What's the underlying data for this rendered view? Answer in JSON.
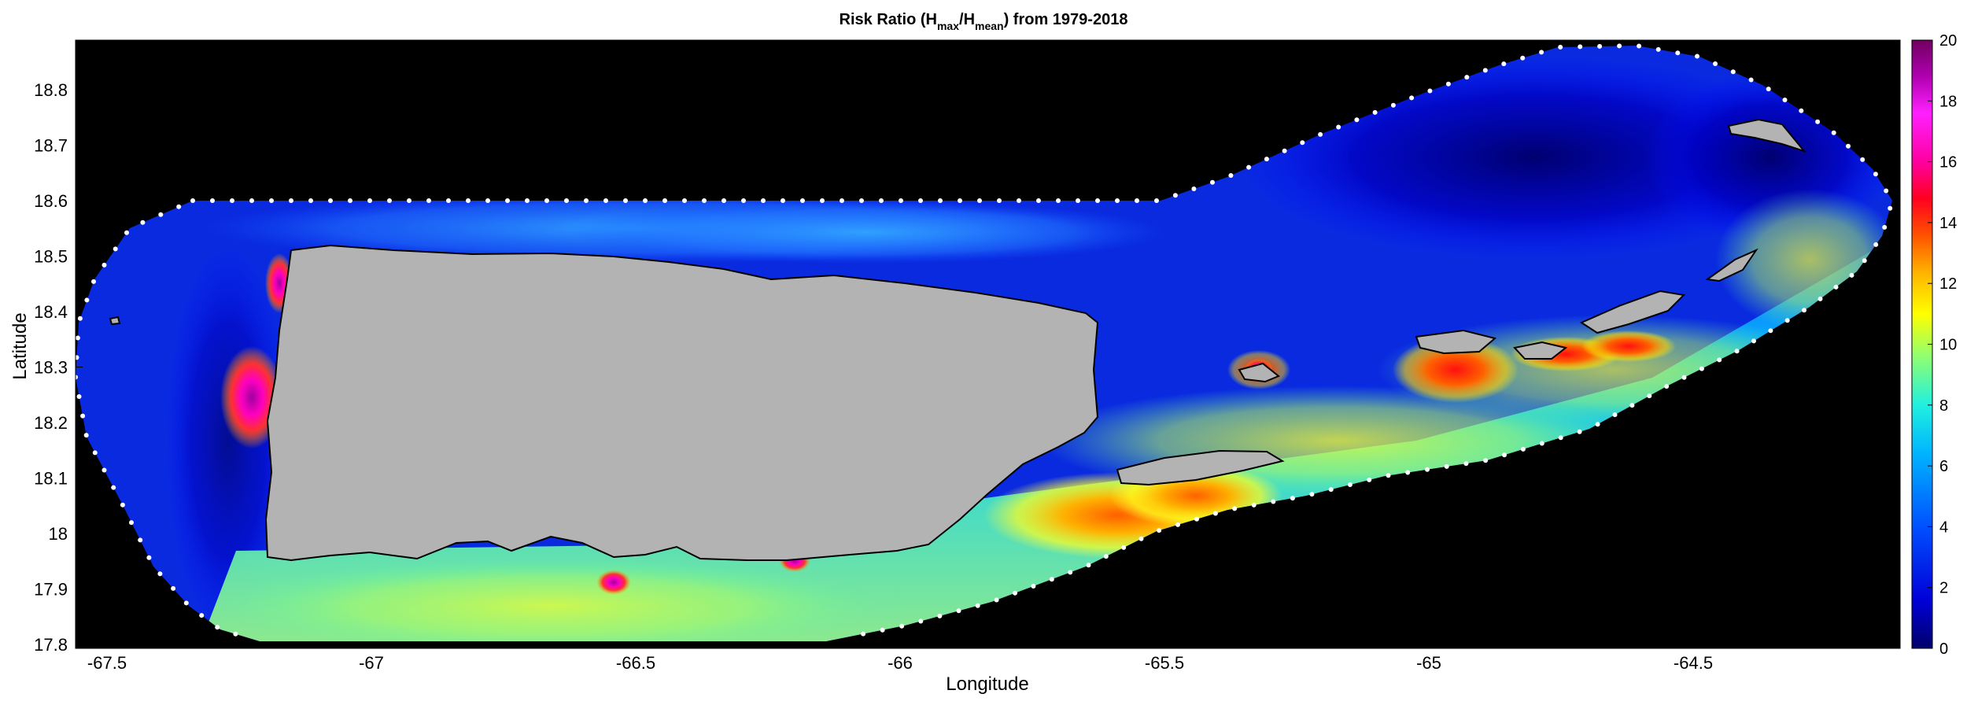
{
  "title": {
    "lead": "Risk Ratio (H",
    "sub1": "max",
    "mid": "/H",
    "sub2": "mean",
    "tail": ") from 1979-2018"
  },
  "axes": {
    "xlabel": "Longitude",
    "ylabel": "Latitude",
    "xticks": [
      "-67.5",
      "-67",
      "-66.5",
      "-66",
      "-65.5",
      "-65",
      "-64.5"
    ],
    "yticks": [
      "18.8",
      "18.7",
      "18.6",
      "18.5",
      "18.4",
      "18.3",
      "18.2",
      "18.1",
      "18",
      "17.9",
      "17.8"
    ]
  },
  "colorbar": {
    "ticks": [
      "20",
      "18",
      "16",
      "14",
      "12",
      "10",
      "8",
      "6",
      "4",
      "2",
      "0"
    ],
    "colors": [
      "#00006a",
      "#0000d8",
      "#0050ff",
      "#00b4ff",
      "#20f0e0",
      "#90ff70",
      "#ffff00",
      "#ffb000",
      "#ff5000",
      "#ff0020",
      "#ff00a0",
      "#ff20ff",
      "#b000b0",
      "#700060"
    ]
  },
  "map_colors": {
    "background": "#000000",
    "land": "#b3b3b3",
    "coast": "#000000",
    "boundary_marker": "#ffffff"
  }
}
